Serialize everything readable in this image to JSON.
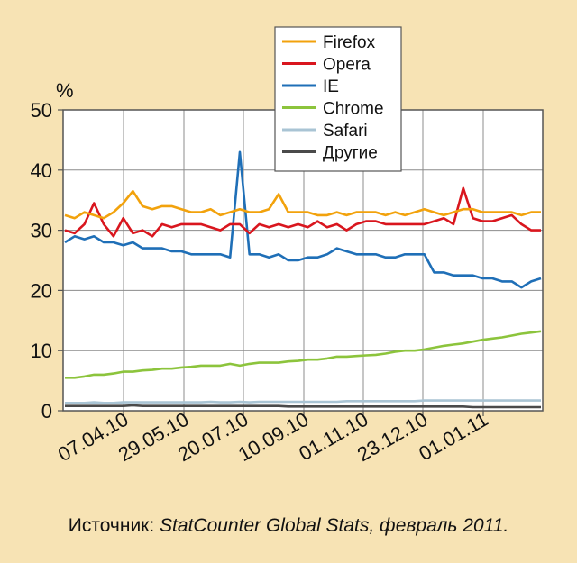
{
  "chart_data": {
    "type": "line",
    "y_unit_label": "%",
    "ylim": [
      0,
      50
    ],
    "y_ticks": [
      0,
      10,
      20,
      30,
      40,
      50
    ],
    "x_tick_labels": [
      "07.04.10",
      "29.05.10",
      "20.07.10",
      "10.09.10",
      "01.11.10",
      "23.12.10",
      "01.01.11"
    ],
    "grid": true,
    "legend_position": "top-center",
    "series": [
      {
        "name": "Firefox",
        "color": "#f2a20c",
        "values": [
          32.5,
          32,
          33,
          32.5,
          32,
          33,
          34.5,
          36.5,
          34,
          33.5,
          34,
          34,
          33.5,
          33,
          33,
          33.5,
          32.5,
          33,
          33.5,
          33,
          33,
          33.5,
          36,
          33,
          33,
          33,
          32.5,
          32.5,
          33,
          32.5,
          33,
          33,
          33,
          32.5,
          33,
          32.5,
          33,
          33.5,
          33,
          32.5,
          33,
          33.5,
          33.5,
          33,
          33,
          33,
          33,
          32.5,
          33,
          33
        ]
      },
      {
        "name": "Opera",
        "color": "#d9161e",
        "values": [
          30,
          29.5,
          31,
          34.5,
          31,
          29,
          32,
          29.5,
          30,
          29,
          31,
          30.5,
          31,
          31,
          31,
          30.5,
          30,
          31,
          31,
          29.5,
          31,
          30.5,
          31,
          30.5,
          31,
          30.5,
          31.5,
          30.5,
          31,
          30,
          31,
          31.5,
          31.5,
          31,
          31,
          31,
          31,
          31,
          31.5,
          32,
          31,
          37,
          32,
          31.5,
          31.5,
          32,
          32.5,
          31,
          30,
          30
        ]
      },
      {
        "name": "IE",
        "color": "#1f6fb7",
        "values": [
          28,
          29,
          28.5,
          29,
          28,
          28,
          27.5,
          28,
          27,
          27,
          27,
          26.5,
          26.5,
          26,
          26,
          26,
          26,
          25.5,
          43,
          26,
          26,
          25.5,
          26,
          25,
          25,
          25.5,
          25.5,
          26,
          27,
          26.5,
          26,
          26,
          26,
          25.5,
          25.5,
          26,
          26,
          26,
          23,
          23,
          22.5,
          22.5,
          22.5,
          22,
          22,
          21.5,
          21.5,
          20.5,
          21.5,
          22
        ]
      },
      {
        "name": "Chrome",
        "color": "#8cc43c",
        "values": [
          5.5,
          5.5,
          5.7,
          6,
          6,
          6.2,
          6.5,
          6.5,
          6.7,
          6.8,
          7,
          7,
          7.2,
          7.3,
          7.5,
          7.5,
          7.5,
          7.8,
          7.5,
          7.8,
          8,
          8,
          8,
          8.2,
          8.3,
          8.5,
          8.5,
          8.7,
          9,
          9,
          9.1,
          9.2,
          9.3,
          9.5,
          9.8,
          10,
          10,
          10.2,
          10.5,
          10.8,
          11,
          11.2,
          11.5,
          11.8,
          12,
          12.2,
          12.5,
          12.8,
          13,
          13.2
        ]
      },
      {
        "name": "Safari",
        "color": "#a9c4d4",
        "values": [
          1.3,
          1.3,
          1.3,
          1.4,
          1.3,
          1.3,
          1.4,
          1.4,
          1.4,
          1.4,
          1.4,
          1.4,
          1.4,
          1.4,
          1.4,
          1.5,
          1.4,
          1.4,
          1.5,
          1.4,
          1.5,
          1.5,
          1.5,
          1.5,
          1.5,
          1.5,
          1.5,
          1.5,
          1.5,
          1.6,
          1.6,
          1.6,
          1.6,
          1.6,
          1.6,
          1.6,
          1.6,
          1.7,
          1.7,
          1.7,
          1.7,
          1.7,
          1.7,
          1.7,
          1.7,
          1.7,
          1.7,
          1.7,
          1.7,
          1.7
        ]
      },
      {
        "name": "Другие",
        "color": "#4a4a4a",
        "values": [
          0.8,
          0.8,
          0.8,
          0.8,
          0.8,
          0.8,
          0.8,
          0.9,
          0.8,
          0.8,
          0.8,
          0.8,
          0.8,
          0.8,
          0.8,
          0.8,
          0.8,
          0.8,
          0.8,
          0.8,
          0.8,
          0.8,
          0.8,
          0.7,
          0.7,
          0.7,
          0.7,
          0.7,
          0.7,
          0.7,
          0.7,
          0.7,
          0.7,
          0.7,
          0.7,
          0.7,
          0.7,
          0.7,
          0.7,
          0.7,
          0.7,
          0.7,
          0.6,
          0.6,
          0.6,
          0.6,
          0.6,
          0.6,
          0.6,
          0.6
        ]
      }
    ]
  },
  "source": {
    "prefix": "Источник: ",
    "name": "StatCounter Global Stats, февраль 2011."
  }
}
